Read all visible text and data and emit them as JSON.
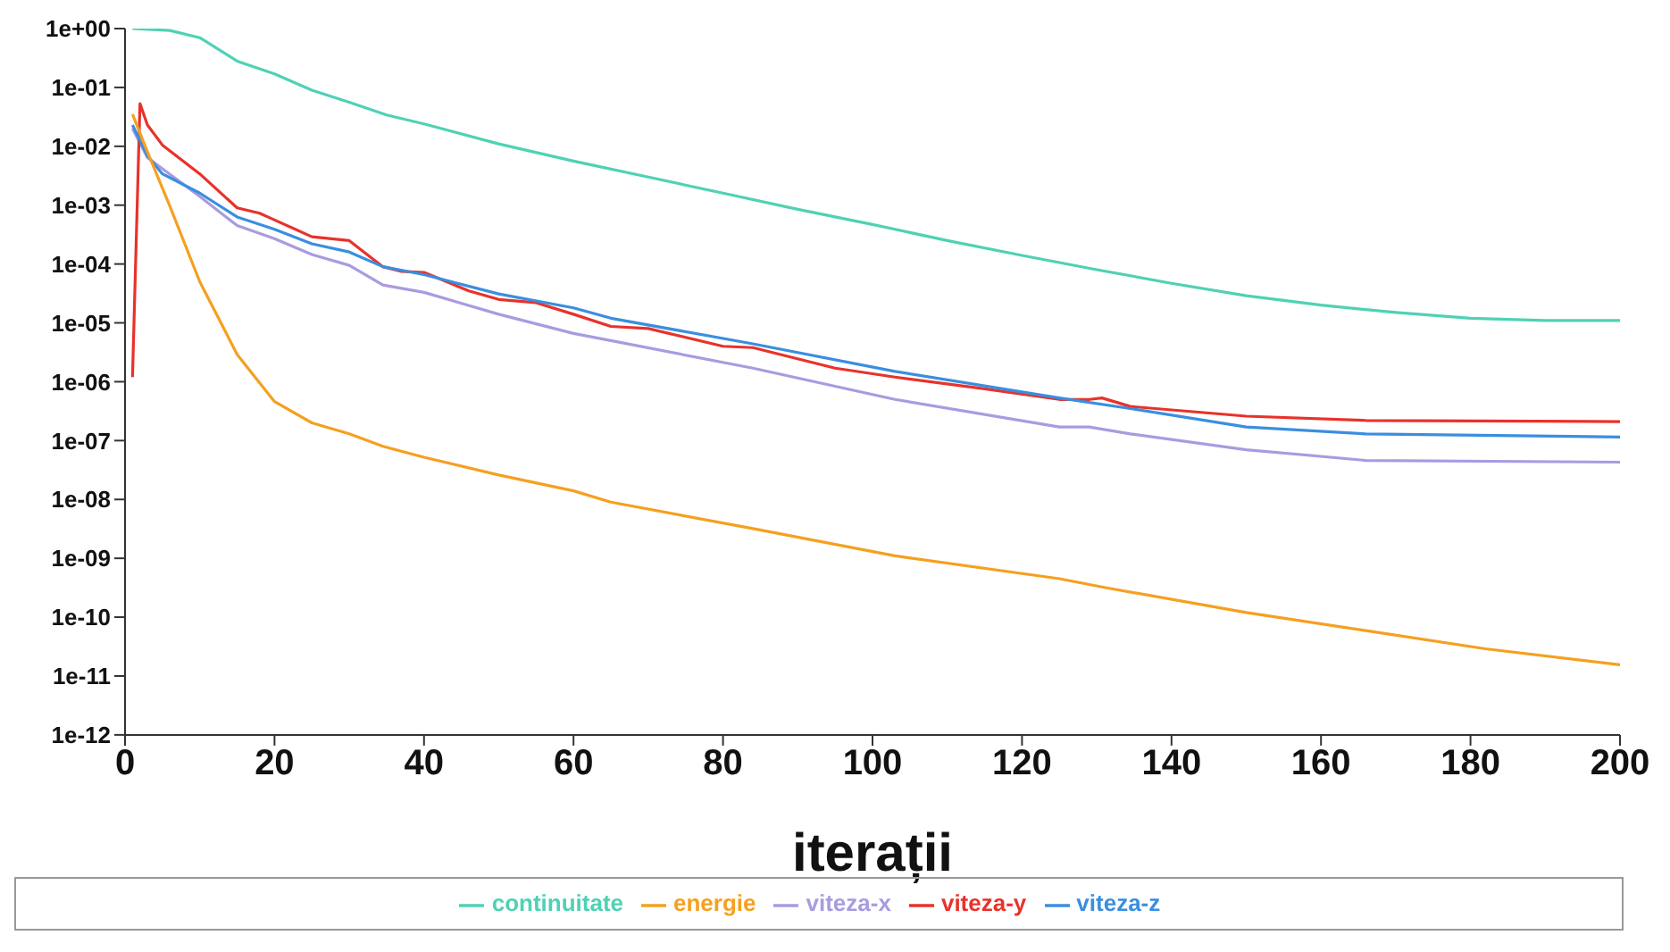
{
  "chart_data": {
    "type": "line",
    "xlabel": "iterații",
    "log": "y",
    "grid": false,
    "legend": "bottom",
    "marker": "none",
    "line_style": "solid",
    "xlim": [
      0,
      200
    ],
    "xticks": [
      0,
      20,
      40,
      60,
      80,
      100,
      120,
      140,
      160,
      180,
      200
    ],
    "ylim": [
      1e-12,
      1
    ],
    "yticks": [
      {
        "value": 1,
        "label": "1e+00"
      },
      {
        "value": 0.1,
        "label": "1e-01"
      },
      {
        "value": 0.01,
        "label": "1e-02"
      },
      {
        "value": 0.001,
        "label": "1e-03"
      },
      {
        "value": 0.0001,
        "label": "1e-04"
      },
      {
        "value": 1e-05,
        "label": "1e-05"
      },
      {
        "value": 1e-06,
        "label": "1e-06"
      },
      {
        "value": 1e-07,
        "label": "1e-07"
      },
      {
        "value": 1e-08,
        "label": "1e-08"
      },
      {
        "value": 1e-09,
        "label": "1e-09"
      },
      {
        "value": 1e-10,
        "label": "1e-10"
      },
      {
        "value": 1e-11,
        "label": "1e-11"
      },
      {
        "value": 1e-12,
        "label": "1e-12"
      }
    ],
    "series": [
      {
        "name": "continuitate",
        "color": "#4fd1b5",
        "x": [
          1,
          6,
          10,
          15,
          20,
          25,
          30,
          35,
          40,
          50,
          60,
          70,
          80,
          90,
          100,
          110,
          120,
          130,
          140,
          150,
          160,
          170,
          180,
          190,
          200
        ],
        "values": [
          1,
          0.93,
          0.7,
          0.28,
          0.17,
          0.09,
          0.056,
          0.034,
          0.024,
          0.011,
          0.0056,
          0.003,
          0.0016,
          0.00085,
          0.00047,
          0.00025,
          0.00014,
          8e-05,
          4.7e-05,
          2.9e-05,
          2e-05,
          1.5e-05,
          1.2e-05,
          1.1e-05,
          1.1e-05
        ]
      },
      {
        "name": "viteza-x",
        "color": "#a99be0",
        "x": [
          1,
          3,
          10,
          15,
          20,
          25,
          30,
          34.5,
          40,
          50,
          60,
          65,
          84,
          103,
          125,
          129,
          134.5,
          150,
          166,
          200
        ],
        "values": [
          0.02,
          0.0064,
          0.0014,
          0.00045,
          0.00027,
          0.000145,
          9.5e-05,
          4.4e-05,
          3.3e-05,
          1.4e-05,
          6.6e-06,
          5e-06,
          1.7e-06,
          5e-07,
          1.7e-07,
          1.7e-07,
          1.3e-07,
          7e-08,
          4.6e-08,
          4.3e-08
        ]
      },
      {
        "name": "viteza-y",
        "color": "#e8322a",
        "x": [
          1,
          2,
          3,
          5,
          10,
          15,
          18,
          19.5,
          25,
          30,
          34.5,
          37,
          40,
          46,
          50,
          55,
          60,
          65,
          70,
          80,
          84,
          95,
          103,
          115,
          125,
          129,
          130.7,
          134.5,
          150,
          166,
          200
        ],
        "values": [
          1.2e-06,
          0.053,
          0.023,
          0.0105,
          0.0034,
          0.0009,
          0.00073,
          0.0006,
          0.00029,
          0.00025,
          9e-05,
          7.5e-05,
          7.2e-05,
          3.5e-05,
          2.5e-05,
          2.2e-05,
          1.4e-05,
          8.7e-06,
          8e-06,
          4e-06,
          3.8e-06,
          1.7e-06,
          1.2e-06,
          7.6e-07,
          5e-07,
          5e-07,
          5.3e-07,
          3.8e-07,
          2.6e-07,
          2.2e-07,
          2.1e-07
        ]
      },
      {
        "name": "viteza-z",
        "color": "#3a8ee0",
        "x": [
          1,
          3,
          5,
          10,
          15,
          20,
          25,
          30,
          34.5,
          40,
          50,
          60,
          65,
          84,
          103,
          125,
          134.5,
          150,
          166,
          200
        ],
        "values": [
          0.023,
          0.0069,
          0.0034,
          0.0016,
          0.00063,
          0.00039,
          0.00022,
          0.00016,
          9e-05,
          6.6e-05,
          3.1e-05,
          1.8e-05,
          1.2e-05,
          4.4e-06,
          1.5e-06,
          5.3e-07,
          3.5e-07,
          1.7e-07,
          1.3e-07,
          1.15e-07
        ]
      },
      {
        "name": "energie",
        "color": "#f5a020",
        "x": [
          1,
          3,
          6,
          10,
          15,
          20,
          25,
          30,
          34.5,
          40,
          50,
          60,
          65,
          84,
          103,
          125,
          131,
          150,
          166,
          182,
          200
        ],
        "values": [
          0.035,
          0.008,
          0.00096,
          5e-05,
          2.9e-06,
          4.6e-07,
          2e-07,
          1.3e-07,
          8e-08,
          5.2e-08,
          2.6e-08,
          1.4e-08,
          9e-09,
          3.2e-09,
          1.1e-09,
          4.5e-10,
          3.2e-10,
          1.2e-10,
          5.9e-11,
          2.9e-11,
          1.55e-11
        ]
      }
    ]
  }
}
